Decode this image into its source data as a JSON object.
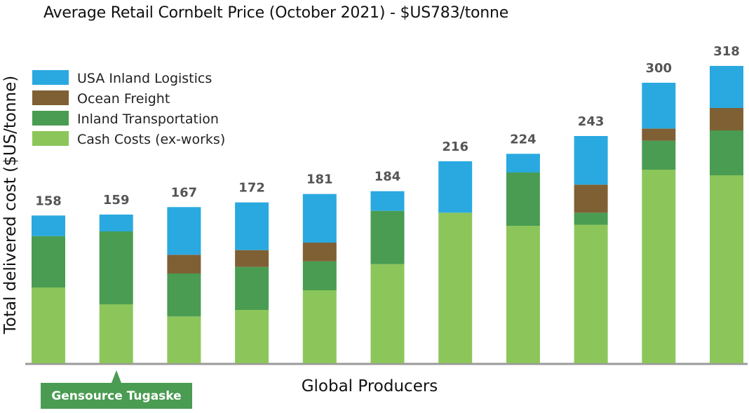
{
  "chart_data": {
    "type": "bar",
    "stacked": true,
    "title": "Average Retail Cornbelt Price (October 2021) - $US783/tonne",
    "xlabel": "Global Producers",
    "ylabel": "Total delivered cost ($US/tonne)",
    "ylim": [
      0,
      330
    ],
    "grid": false,
    "legend_position": "top-left",
    "categories": [
      "",
      "",
      "",
      "",
      "",
      "",
      "",
      "",
      "",
      "",
      ""
    ],
    "totals": [
      158,
      159,
      167,
      172,
      181,
      184,
      216,
      224,
      243,
      300,
      318
    ],
    "total_labels": [
      "158",
      "159",
      "167",
      "172",
      "181",
      "184",
      "216",
      "224",
      "243",
      "300",
      "318"
    ],
    "series": [
      {
        "name": "Cash Costs (ex-works)",
        "color": "#8cc65a",
        "values": [
          81,
          63,
          50,
          57,
          78,
          106,
          161,
          147,
          148,
          207,
          201
        ]
      },
      {
        "name": "Inland Transportation",
        "color": "#4a9c52",
        "values": [
          55,
          78,
          46,
          46,
          31,
          57,
          0,
          57,
          13,
          31,
          48
        ]
      },
      {
        "name": "Ocean Freight",
        "color": "#7f6034",
        "values": [
          0,
          0,
          20,
          18,
          20,
          0,
          0,
          0,
          30,
          13,
          24
        ]
      },
      {
        "name": "USA Inland Logistics",
        "color": "#2aa9e0",
        "values": [
          22,
          18,
          51,
          51,
          52,
          21,
          55,
          20,
          52,
          49,
          45
        ]
      }
    ],
    "legend_order": [
      3,
      2,
      1,
      0
    ],
    "annotation": {
      "text": "Gensource Tugaske",
      "category_index": 1
    }
  }
}
